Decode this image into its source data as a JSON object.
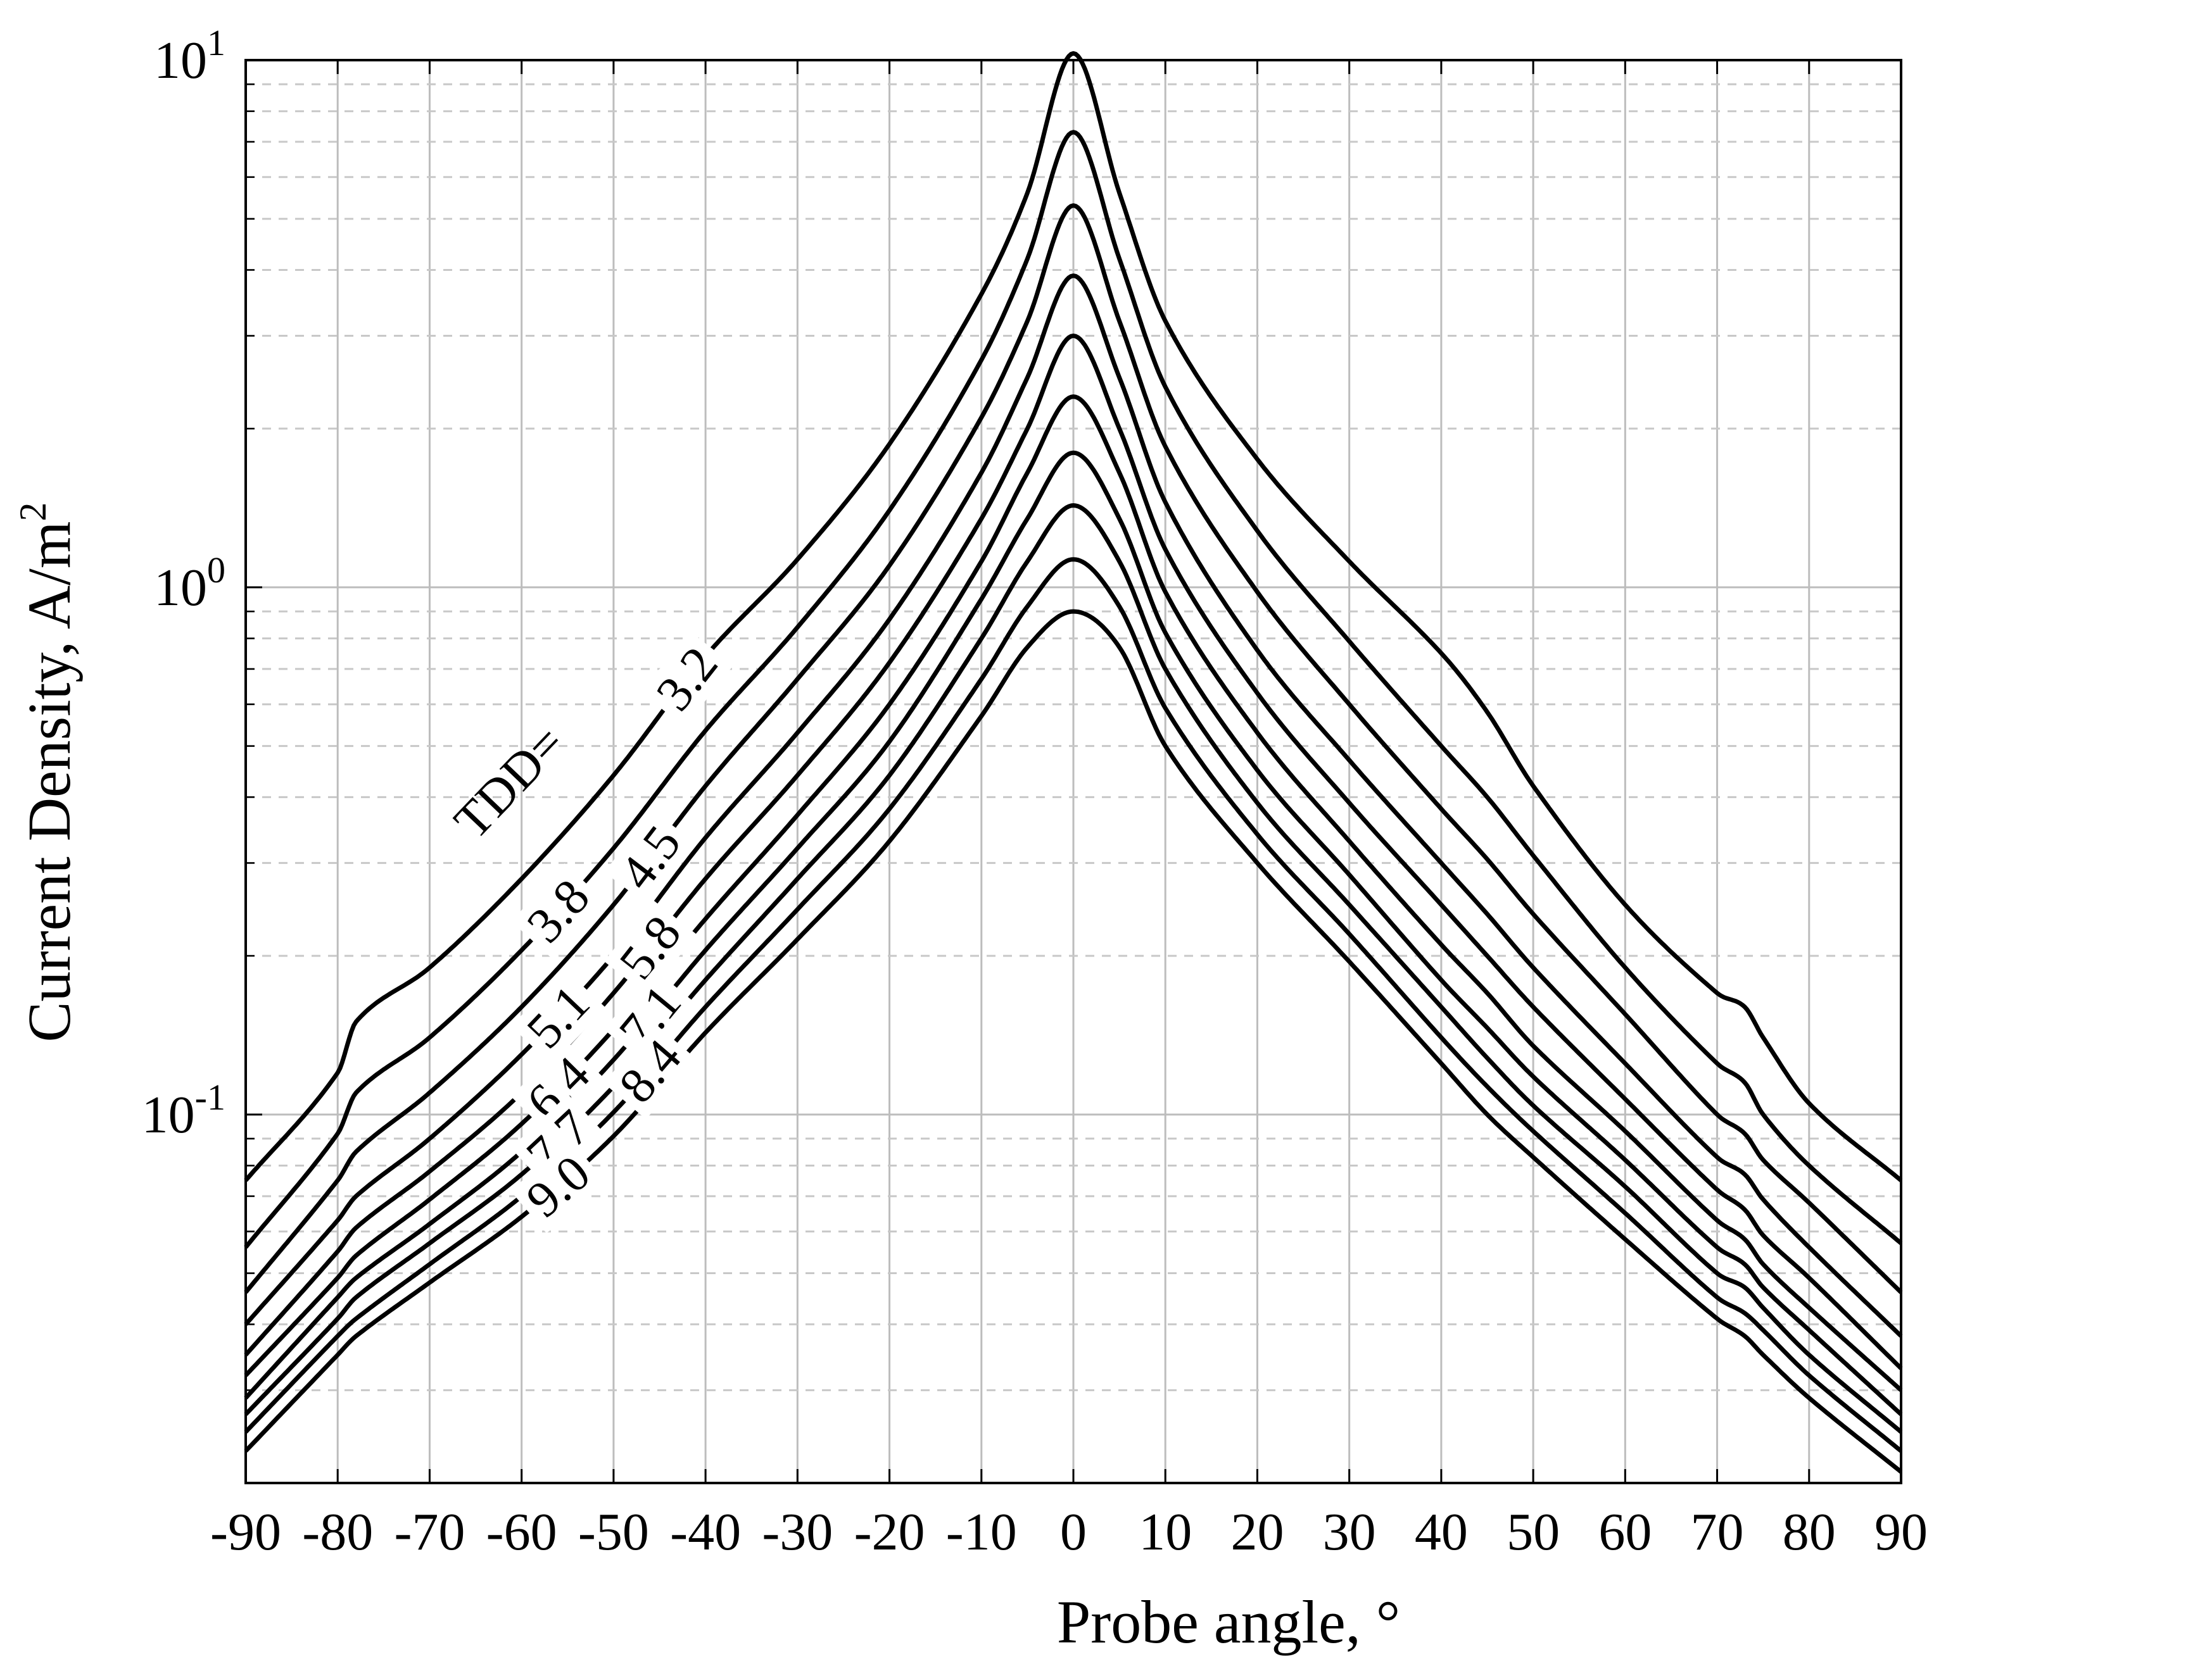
{
  "chart_data": {
    "type": "line",
    "title": "",
    "xlabel": "Probe angle, °",
    "ylabel": "Current Density, A/m²",
    "ylabel_base": "Current Density, A/m",
    "ylabel_sup": "2",
    "xlim": [
      -90,
      90
    ],
    "ylim": [
      0.02,
      10
    ],
    "yscale": "log",
    "grid": true,
    "x_ticks": [
      -90,
      -80,
      -70,
      -60,
      -50,
      -40,
      -30,
      -20,
      -10,
      0,
      10,
      20,
      30,
      40,
      50,
      60,
      70,
      80,
      90
    ],
    "y_ticks": [
      {
        "value": 0.1,
        "base": "10",
        "exp": "-1"
      },
      {
        "value": 1,
        "base": "10",
        "exp": "0"
      },
      {
        "value": 10,
        "base": "10",
        "exp": "1"
      }
    ],
    "label_prefix": "TDD=",
    "x": [
      -90,
      -80,
      -78,
      -70,
      -60,
      -50,
      -40,
      -30,
      -20,
      -10,
      -5,
      0,
      5,
      10,
      20,
      30,
      40,
      45,
      50,
      60,
      70,
      73,
      75,
      80,
      90
    ],
    "series": [
      {
        "name": "3.2",
        "values": [
          0.075,
          0.12,
          0.15,
          0.19,
          0.28,
          0.44,
          0.74,
          1.13,
          1.87,
          3.6,
          5.6,
          10.3,
          5.6,
          3.2,
          1.75,
          1.12,
          0.75,
          0.58,
          0.42,
          0.25,
          0.17,
          0.16,
          0.14,
          0.105,
          0.075
        ]
      },
      {
        "name": "3.8",
        "values": [
          0.056,
          0.092,
          0.11,
          0.14,
          0.205,
          0.32,
          0.535,
          0.84,
          1.4,
          2.7,
          4.2,
          7.3,
          4.2,
          2.4,
          1.28,
          0.79,
          0.5,
          0.4,
          0.31,
          0.19,
          0.125,
          0.115,
          0.1,
          0.08,
          0.057
        ]
      },
      {
        "name": "4.5",
        "values": [
          0.046,
          0.075,
          0.085,
          0.11,
          0.16,
          0.25,
          0.42,
          0.67,
          1.1,
          2.1,
          3.2,
          5.3,
          3.2,
          1.85,
          0.98,
          0.6,
          0.38,
          0.305,
          0.24,
          0.155,
          0.1,
          0.092,
          0.082,
          0.068,
          0.046
        ]
      },
      {
        "name": "5.1",
        "values": [
          0.04,
          0.063,
          0.07,
          0.09,
          0.13,
          0.2,
          0.335,
          0.53,
          0.87,
          1.65,
          2.5,
          3.9,
          2.5,
          1.45,
          0.76,
          0.47,
          0.3,
          0.24,
          0.19,
          0.125,
          0.083,
          0.077,
          0.069,
          0.056,
          0.038
        ]
      },
      {
        "name": "5.8",
        "values": [
          0.035,
          0.055,
          0.061,
          0.078,
          0.11,
          0.17,
          0.28,
          0.44,
          0.72,
          1.35,
          2.0,
          3.0,
          2.0,
          1.18,
          0.63,
          0.39,
          0.25,
          0.2,
          0.16,
          0.107,
          0.072,
          0.066,
          0.059,
          0.049,
          0.033
        ]
      },
      {
        "name": "6.4",
        "values": [
          0.032,
          0.049,
          0.054,
          0.069,
          0.096,
          0.145,
          0.235,
          0.37,
          0.6,
          1.12,
          1.65,
          2.3,
          1.65,
          0.98,
          0.53,
          0.33,
          0.21,
          0.17,
          0.135,
          0.093,
          0.063,
          0.058,
          0.052,
          0.043,
          0.03
        ]
      },
      {
        "name": "7.1",
        "values": [
          0.029,
          0.045,
          0.049,
          0.062,
          0.085,
          0.127,
          0.205,
          0.32,
          0.51,
          0.95,
          1.35,
          1.8,
          1.35,
          0.82,
          0.45,
          0.285,
          0.18,
          0.146,
          0.118,
          0.082,
          0.056,
          0.052,
          0.047,
          0.039,
          0.027
        ]
      },
      {
        "name": "7.7",
        "values": [
          0.027,
          0.041,
          0.045,
          0.057,
          0.077,
          0.113,
          0.18,
          0.28,
          0.44,
          0.8,
          1.12,
          1.43,
          1.12,
          0.7,
          0.39,
          0.25,
          0.16,
          0.128,
          0.104,
          0.073,
          0.05,
          0.047,
          0.043,
          0.035,
          0.025
        ]
      },
      {
        "name": "8.4",
        "values": [
          0.025,
          0.038,
          0.041,
          0.052,
          0.07,
          0.101,
          0.16,
          0.245,
          0.38,
          0.67,
          0.92,
          1.13,
          0.92,
          0.59,
          0.34,
          0.22,
          0.14,
          0.113,
          0.093,
          0.065,
          0.045,
          0.042,
          0.039,
          0.032,
          0.023
        ]
      },
      {
        "name": "9.0",
        "values": [
          0.023,
          0.035,
          0.038,
          0.048,
          0.064,
          0.091,
          0.143,
          0.215,
          0.33,
          0.57,
          0.77,
          0.9,
          0.77,
          0.5,
          0.3,
          0.195,
          0.125,
          0.1,
          0.083,
          0.058,
          0.041,
          0.038,
          0.035,
          0.029,
          0.021
        ]
      }
    ],
    "legend": "inline-labels"
  }
}
